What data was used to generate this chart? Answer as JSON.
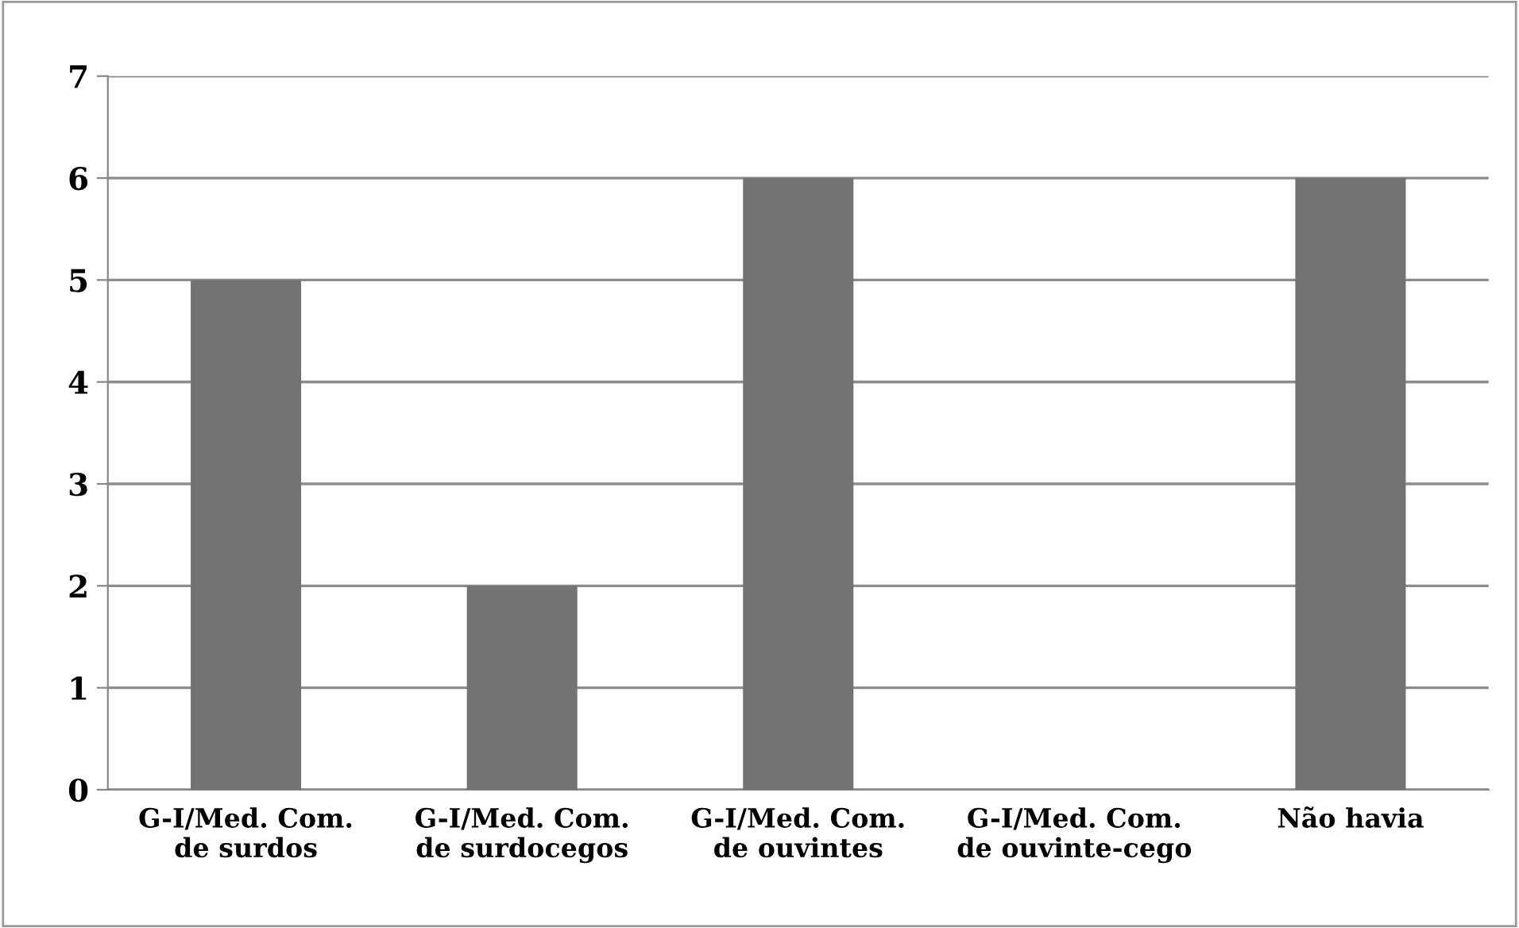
{
  "chart_data": {
    "type": "bar",
    "categories": [
      "G-I/Med. Com.\nde surdos",
      "G-I/Med. Com.\nde surdocegos",
      "G-I/Med. Com.\nde ouvintes",
      "G-I/Med. Com.\nde ouvinte-cego",
      "Não havia"
    ],
    "values": [
      5,
      2,
      6,
      0,
      6
    ],
    "color": "#737373",
    "ylim": [
      0,
      7
    ],
    "yticks": [
      0,
      1,
      2,
      3,
      4,
      5,
      6,
      7
    ],
    "grid": "y",
    "legend": false
  }
}
